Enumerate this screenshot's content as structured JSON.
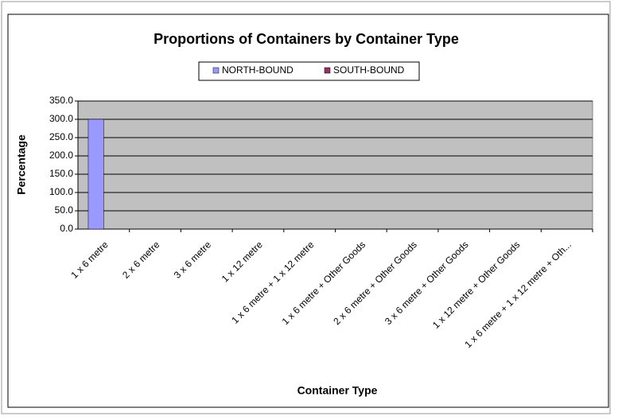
{
  "chart_data": {
    "type": "bar",
    "title": "Proportions of Containers by Container Type",
    "x_label": "Container Type",
    "y_label": "Percentage",
    "categories": [
      "1 x 6 metre",
      "2 x 6 metre",
      "3 x 6 metre",
      "1 x 12 metre",
      "1 x 6 metre + 1 x 12 metre",
      "1 x 6 metre + Other Goods",
      "2 x 6 metre + Other Goods",
      "3 x 6 metre + Other Goods",
      "1 x 12 metre + Other Goods",
      "1 x 6 metre + 1 x 12 metre + Oth..."
    ],
    "series": [
      {
        "name": "NORTH-BOUND",
        "color": "#9999ff",
        "values": [
          300,
          0,
          0,
          0,
          0,
          0,
          0,
          0,
          0,
          0
        ]
      },
      {
        "name": "SOUTH-BOUND",
        "color": "#993366",
        "values": [
          0,
          0,
          0,
          0,
          0,
          0,
          0,
          0,
          0,
          0
        ]
      }
    ],
    "ylim": [
      0,
      350
    ],
    "yticks": [
      {
        "value": 0,
        "label": "0.0"
      },
      {
        "value": 50,
        "label": "50.0"
      },
      {
        "value": 100,
        "label": "100.0"
      },
      {
        "value": 150,
        "label": "150.0"
      },
      {
        "value": 200,
        "label": "200.0"
      },
      {
        "value": 250,
        "label": "250.0"
      },
      {
        "value": 300,
        "label": "300.0"
      },
      {
        "value": 350,
        "label": "350.0"
      }
    ],
    "grid": true,
    "legend": "top"
  }
}
